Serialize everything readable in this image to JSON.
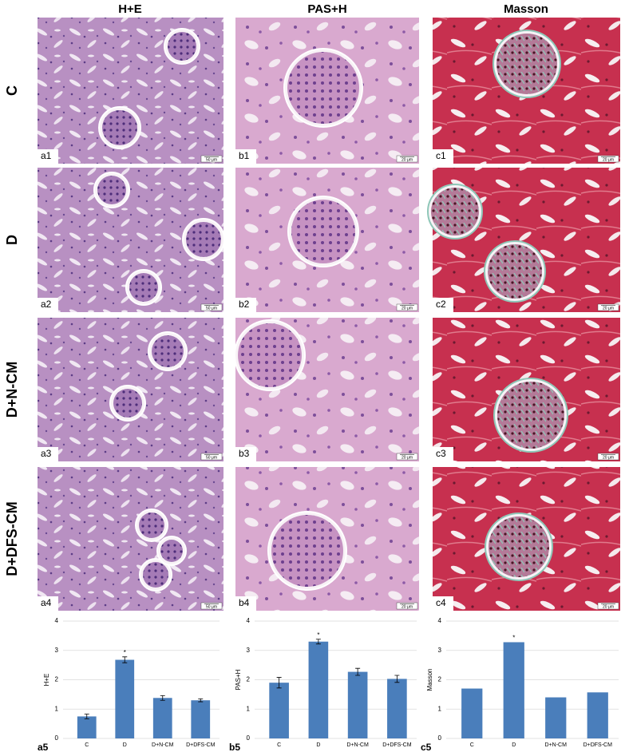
{
  "columns": [
    "H+E",
    "PAS+H",
    "Masson"
  ],
  "rows": [
    "C",
    "D",
    "D+N-CM",
    "D+DFS-CM"
  ],
  "panels": [
    [
      {
        "label": "a1",
        "scale": "50 μm"
      },
      {
        "label": "b1",
        "scale": "20 μm"
      },
      {
        "label": "c1",
        "scale": "20 μm"
      }
    ],
    [
      {
        "label": "a2",
        "scale": "50 μm"
      },
      {
        "label": "b2",
        "scale": "20 μm"
      },
      {
        "label": "c2",
        "scale": "20 μm"
      }
    ],
    [
      {
        "label": "a3",
        "scale": "50 μm"
      },
      {
        "label": "b3",
        "scale": "20 μm"
      },
      {
        "label": "c3",
        "scale": "20 μm"
      }
    ],
    [
      {
        "label": "a4",
        "scale": "50 μm"
      },
      {
        "label": "b4",
        "scale": "20 μm"
      },
      {
        "label": "c4",
        "scale": "20 μm"
      }
    ]
  ],
  "chart_data": [
    {
      "type": "bar",
      "panel_label": "a5",
      "ylabel": "H+E",
      "categories": [
        "C",
        "D",
        "D+N-CM",
        "D+DFS-CM"
      ],
      "values": [
        0.75,
        2.68,
        1.38,
        1.3
      ],
      "errors": [
        0.08,
        0.1,
        0.08,
        0.05
      ],
      "color": "#4a7ebb",
      "ylim": [
        0,
        4
      ],
      "yticks": [
        0,
        1,
        2,
        3,
        4
      ],
      "grid": true,
      "annotations": [
        {
          "text": "*",
          "x": "D"
        }
      ]
    },
    {
      "type": "bar",
      "panel_label": "b5",
      "ylabel": "PAS+H",
      "categories": [
        "C",
        "D",
        "D+N-CM",
        "D+DFS-CM"
      ],
      "values": [
        1.9,
        3.3,
        2.27,
        2.03
      ],
      "errors": [
        0.18,
        0.08,
        0.12,
        0.12
      ],
      "color": "#4a7ebb",
      "ylim": [
        0,
        4
      ],
      "yticks": [
        0,
        1,
        2,
        3,
        4
      ],
      "grid": true,
      "annotations": [
        {
          "text": "*",
          "x": "D"
        }
      ]
    },
    {
      "type": "bar",
      "panel_label": "c5",
      "ylabel": "Masson",
      "categories": [
        "C",
        "D",
        "D+N-CM",
        "D+DFS-CM"
      ],
      "values": [
        1.7,
        3.28,
        1.4,
        1.57
      ],
      "color": "#4a7ebb",
      "ylim": [
        0,
        4
      ],
      "yticks": [
        0,
        1,
        2,
        3,
        4
      ],
      "grid": true,
      "annotations": [
        {
          "text": "*",
          "x": "D"
        }
      ]
    }
  ]
}
